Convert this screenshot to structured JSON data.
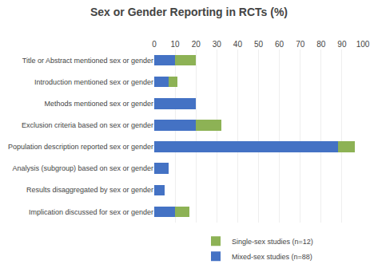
{
  "chart_data": {
    "type": "bar",
    "orientation": "horizontal",
    "stacked": true,
    "title": "Sex or Gender Reporting in RCTs (%)",
    "categories": [
      "Title or Abstract mentioned sex or gender",
      "Introduction mentioned sex or gender",
      "Methods mentioned sex or gender",
      "Exclusion criteria based on sex or gender",
      "Population description reported sex or gender",
      "Analysis (subgroup) based on sex or gender",
      "Results disaggregated by sex or gender",
      "Implication discussed for sex or gender"
    ],
    "series": [
      {
        "name": "Mixed-sex studies (n=88)",
        "color": "#4472C4",
        "values": [
          10,
          7,
          20,
          20,
          88,
          7,
          5,
          10
        ]
      },
      {
        "name": "Single-sex studies (n=12)",
        "color": "#8DB255",
        "values": [
          10,
          4,
          0,
          12,
          8,
          0,
          0,
          7
        ]
      }
    ],
    "xlim": [
      0,
      100
    ],
    "xticks": [
      0,
      10,
      20,
      30,
      40,
      50,
      60,
      70,
      80,
      90,
      100
    ],
    "grid": true,
    "legend": "bottom"
  }
}
